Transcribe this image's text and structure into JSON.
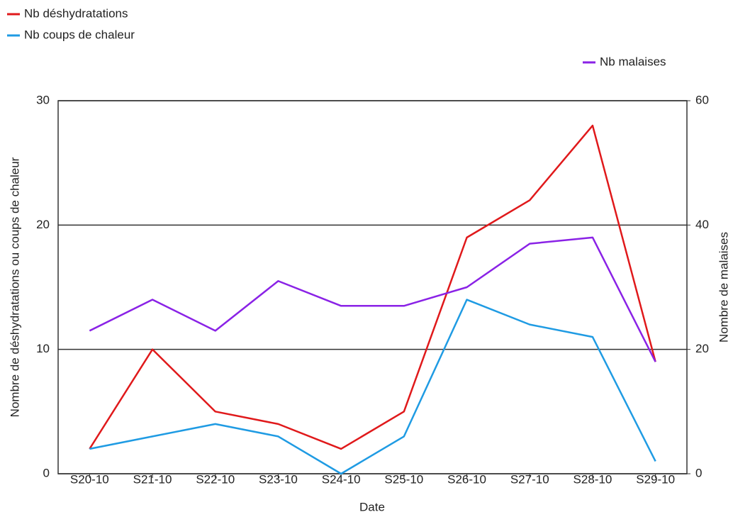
{
  "chart_data": {
    "type": "line",
    "x_label": "Date",
    "y_label": "Nombre de déshydratations ou coups de chaleur",
    "y2_label": "Nombre de malaises",
    "categories": [
      "S20-10",
      "S21-10",
      "S22-10",
      "S23-10",
      "S24-10",
      "S25-10",
      "S26-10",
      "S27-10",
      "S28-10",
      "S29-10"
    ],
    "series": [
      {
        "name": "Nb déshydratations",
        "color": "#e0191b",
        "values": [
          2,
          10,
          5,
          4,
          2,
          5,
          19,
          22,
          28,
          9
        ]
      },
      {
        "name": "Nb coups de chaleur",
        "color": "#1f9be3",
        "values": [
          2,
          3,
          4,
          3,
          0,
          3,
          14,
          12,
          11,
          1
        ]
      },
      {
        "name": "Nb malaises",
        "color": "#8a22e6",
        "axis": "y2",
        "values": [
          23,
          28,
          23,
          31,
          27,
          27,
          30,
          37,
          38,
          18
        ]
      }
    ],
    "ylim": [
      0,
      30
    ],
    "yticks": [
      0,
      10,
      20,
      30
    ],
    "y2lim": [
      0,
      60
    ],
    "y2ticks": [
      0,
      20,
      40,
      60
    ],
    "grid": true
  }
}
